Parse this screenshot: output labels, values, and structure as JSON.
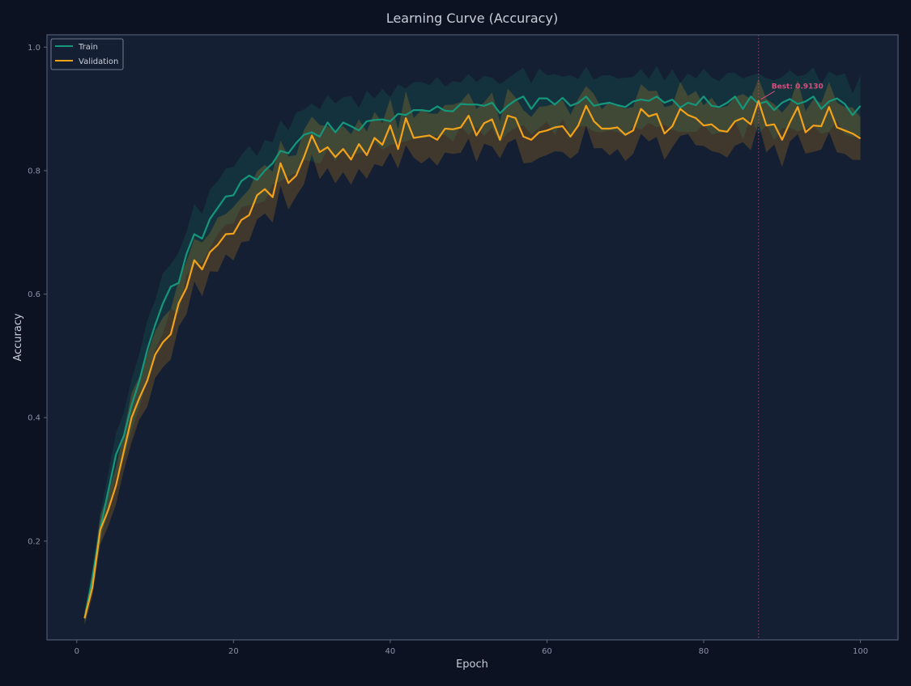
{
  "colors": {
    "background": "#0c1222",
    "plot_background": "#151f33",
    "axis": "#5b6680",
    "text": "#c8cdd8",
    "tick_text": "#8a92a6",
    "train": "#14977a",
    "validation": "#f2a218",
    "best": "#d64f7d"
  },
  "chart_data": {
    "type": "line",
    "title": "Learning Curve (Accuracy)",
    "xlabel": "Epoch",
    "ylabel": "Accuracy",
    "xlim": [
      -3.8,
      104.8
    ],
    "ylim": [
      0.04,
      1.02
    ],
    "xticks": [
      0,
      20,
      40,
      60,
      80,
      100
    ],
    "xtick_labels": [
      "0",
      "20",
      "40",
      "60",
      "80",
      "100"
    ],
    "yticks": [
      0.2,
      0.4,
      0.6,
      0.8,
      1.0
    ],
    "ytick_labels": [
      "0.2",
      "0.4",
      "0.6",
      "0.8",
      "1.0"
    ],
    "grid": false,
    "legend_position": "top-left",
    "x": [
      1,
      2,
      3,
      4,
      5,
      6,
      7,
      8,
      9,
      10,
      11,
      12,
      13,
      14,
      15,
      16,
      17,
      18,
      19,
      20,
      21,
      22,
      23,
      24,
      25,
      26,
      27,
      28,
      29,
      30,
      31,
      32,
      33,
      34,
      35,
      36,
      37,
      38,
      39,
      40,
      41,
      42,
      43,
      44,
      45,
      46,
      47,
      48,
      49,
      50,
      51,
      52,
      53,
      54,
      55,
      56,
      57,
      58,
      59,
      60,
      61,
      62,
      63,
      64,
      65,
      66,
      67,
      68,
      69,
      70,
      71,
      72,
      73,
      74,
      75,
      76,
      77,
      78,
      79,
      80,
      81,
      82,
      83,
      84,
      85,
      86,
      87,
      88,
      89,
      90,
      91,
      92,
      93,
      94,
      95,
      96,
      97,
      98,
      99,
      100
    ],
    "series": [
      {
        "name": "Train",
        "color": "#14977a",
        "band": 0.045,
        "values": [
          0.075,
          0.14,
          0.22,
          0.28,
          0.34,
          0.37,
          0.42,
          0.46,
          0.51,
          0.55,
          0.585,
          0.612,
          0.618,
          0.665,
          0.697,
          0.69,
          0.722,
          0.74,
          0.758,
          0.76,
          0.783,
          0.792,
          0.785,
          0.8,
          0.812,
          0.832,
          0.828,
          0.845,
          0.858,
          0.862,
          0.855,
          0.878,
          0.862,
          0.878,
          0.872,
          0.865,
          0.88,
          0.882,
          0.883,
          0.88,
          0.892,
          0.89,
          0.898,
          0.898,
          0.896,
          0.904,
          0.897,
          0.896,
          0.908,
          0.907,
          0.907,
          0.905,
          0.91,
          0.893,
          0.905,
          0.914,
          0.92,
          0.9,
          0.917,
          0.917,
          0.907,
          0.918,
          0.905,
          0.91,
          0.92,
          0.905,
          0.908,
          0.91,
          0.906,
          0.903,
          0.912,
          0.915,
          0.913,
          0.92,
          0.91,
          0.915,
          0.902,
          0.91,
          0.906,
          0.92,
          0.905,
          0.903,
          0.91,
          0.92,
          0.9,
          0.92,
          0.908,
          0.912,
          0.898,
          0.91,
          0.916,
          0.908,
          0.912,
          0.92,
          0.9,
          0.912,
          0.917,
          0.908,
          0.89,
          0.905
        ]
      },
      {
        "name": "Validation",
        "color": "#f2a218",
        "band": 0.04,
        "values": [
          0.075,
          0.125,
          0.218,
          0.25,
          0.29,
          0.345,
          0.4,
          0.432,
          0.46,
          0.502,
          0.522,
          0.535,
          0.585,
          0.61,
          0.655,
          0.64,
          0.668,
          0.68,
          0.697,
          0.698,
          0.72,
          0.728,
          0.76,
          0.77,
          0.757,
          0.812,
          0.78,
          0.792,
          0.822,
          0.857,
          0.83,
          0.838,
          0.822,
          0.835,
          0.818,
          0.843,
          0.825,
          0.853,
          0.842,
          0.873,
          0.835,
          0.885,
          0.853,
          0.855,
          0.857,
          0.85,
          0.868,
          0.867,
          0.87,
          0.889,
          0.857,
          0.877,
          0.883,
          0.85,
          0.889,
          0.885,
          0.855,
          0.85,
          0.862,
          0.865,
          0.87,
          0.872,
          0.855,
          0.873,
          0.905,
          0.88,
          0.868,
          0.868,
          0.87,
          0.858,
          0.865,
          0.9,
          0.888,
          0.892,
          0.86,
          0.872,
          0.9,
          0.89,
          0.885,
          0.873,
          0.875,
          0.865,
          0.863,
          0.88,
          0.885,
          0.875,
          0.913,
          0.873,
          0.875,
          0.85,
          0.878,
          0.903,
          0.862,
          0.873,
          0.872,
          0.903,
          0.87,
          0.865,
          0.86,
          0.852
        ]
      }
    ],
    "best": {
      "epoch": 87,
      "value": 0.913,
      "label": "Best: 0.9130"
    }
  }
}
